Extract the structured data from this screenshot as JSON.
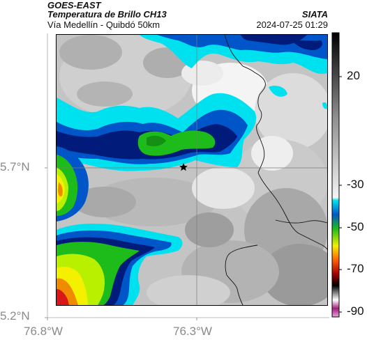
{
  "header": {
    "satellite": "GOES-EAST",
    "product": "Temperatura de Brillo CH13",
    "subtitle": "Vía Medellín - Quibdó 50km",
    "org": "SIATA",
    "datetime": "2024-07-25 01:29"
  },
  "axes": {
    "lat_labels": [
      "5.7°N",
      "5.2°N"
    ],
    "lon_labels": [
      "76.8°W",
      "76.3°W"
    ]
  },
  "colorbar": {
    "labels": [
      "20",
      "-30",
      "-50",
      "-70",
      "-90"
    ]
  },
  "colors": {
    "cold_cyan": "#00e1ef",
    "blue": "#0056c8",
    "navy": "#001b7a",
    "green": "#1ebc1a",
    "lime": "#b8f000",
    "yellow": "#f4f000",
    "orange": "#f08a00",
    "red": "#d81818",
    "bg_gray": "#bfbfbf"
  },
  "marker": {
    "icon": "star-icon"
  }
}
